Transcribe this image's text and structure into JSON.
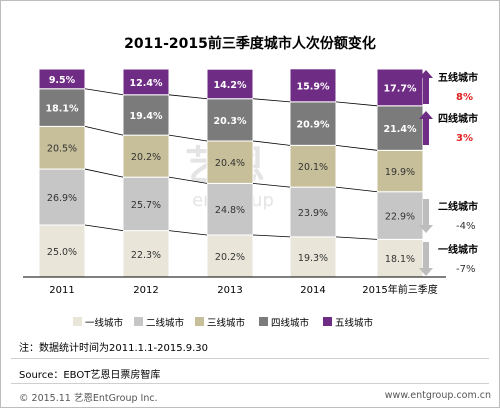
{
  "chart_data": {
    "type": "stacked_bar",
    "title": "2011-2015前三季度城市人次份额变化",
    "categories": [
      "2011",
      "2012",
      "2013",
      "2014",
      "2015年前三季度"
    ],
    "series": [
      {
        "name": "一线城市",
        "values": [
          25.0,
          22.3,
          20.2,
          19.3,
          18.1
        ],
        "labels": [
          "25.0%",
          "22.3%",
          "20.2%",
          "19.3%",
          "18.1%"
        ],
        "color": "#e9e6d9",
        "text": "#333333"
      },
      {
        "name": "二线城市",
        "values": [
          26.9,
          25.7,
          24.8,
          23.9,
          22.9
        ],
        "labels": [
          "26.9%",
          "25.7%",
          "24.8%",
          "23.9%",
          "22.9%"
        ],
        "color": "#c6c6c6",
        "text": "#333333"
      },
      {
        "name": "三线城市",
        "values": [
          20.5,
          20.2,
          20.4,
          20.1,
          19.9
        ],
        "labels": [
          "20.5%",
          "20.2%",
          "20.4%",
          "20.1%",
          "19.9%"
        ],
        "color": "#c7bf9a",
        "text": "#333333"
      },
      {
        "name": "四线城市",
        "values": [
          18.1,
          19.4,
          20.3,
          20.9,
          21.4
        ],
        "labels": [
          "18.1%",
          "19.4%",
          "20.3%",
          "20.9%",
          "21.4%"
        ],
        "color": "#7b7b7b",
        "text": "#ffffff"
      },
      {
        "name": "五线城市",
        "values": [
          9.5,
          12.4,
          14.2,
          15.9,
          17.7
        ],
        "labels": [
          "9.5%",
          "12.4%",
          "14.2%",
          "15.9%",
          "17.7%"
        ],
        "color": "#6f2c84",
        "text": "#ffffff"
      }
    ],
    "ylim": [
      0,
      100
    ],
    "legend_position": "bottom",
    "annotations": [
      {
        "label": "五线城市",
        "change": "8%",
        "direction": "up",
        "arrow_color": "#6f2c84",
        "change_color": "#e02020"
      },
      {
        "label": "四线城市",
        "change": "3%",
        "direction": "up",
        "arrow_color": "#6f2c84",
        "change_color": "#e02020"
      },
      {
        "label": "二线城市",
        "change": "-4%",
        "direction": "down",
        "arrow_color": "#bdbdbd",
        "change_color": "#333333"
      },
      {
        "label": "一线城市",
        "change": "-7%",
        "direction": "down",
        "arrow_color": "#bdbdbd",
        "change_color": "#333333"
      }
    ]
  },
  "watermark": "艺恩 entgroup",
  "footer": {
    "note": "注：数据统计时间为2011.1.1-2015.9.30",
    "source": "Source：EBOT艺恩日票房智库",
    "copyright": "© 2015.11 艺恩EntGroup Inc.",
    "website": "www.entgroup.com.cn"
  }
}
